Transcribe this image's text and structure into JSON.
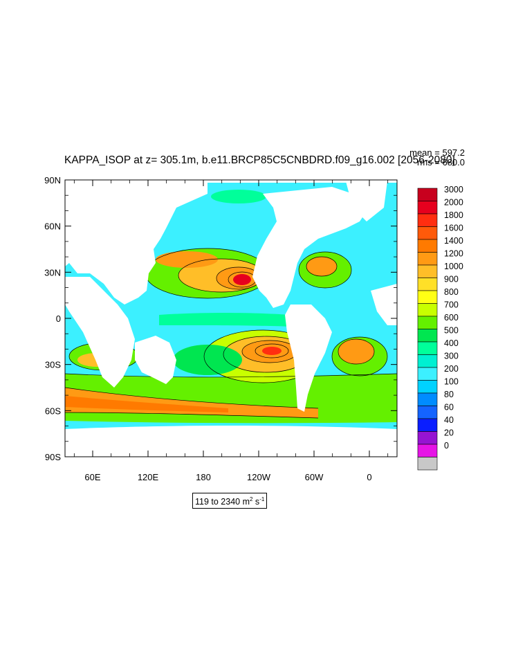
{
  "map": {
    "title": "KAPPA_ISOP at z= 305.1m, b.e11.BRCP85C5CNBDRD.f09_g16.002 [2056-2080]",
    "stats": {
      "mean": "mean = 597.2",
      "rms": "rms = 680.0"
    },
    "variable": "KAPPA_ISOP",
    "depth": "z= 305.1m",
    "case": "b.e11.BRCP85C5CNBDRD.f09_g16.002",
    "period": "[2056-2080]",
    "range_text": {
      "prefix": "119 to 2340 m",
      "sup1": "2",
      "mid": " s",
      "sup2": "-1"
    },
    "projection": "cylindrical equidistant",
    "longitude_range": [
      30,
      390
    ],
    "latitude_range": [
      -90,
      90
    ],
    "lat_ticks": [
      {
        "value": 90,
        "label": "90N"
      },
      {
        "value": 60,
        "label": "60N"
      },
      {
        "value": 30,
        "label": "30N"
      },
      {
        "value": 0,
        "label": "0"
      },
      {
        "value": -30,
        "label": "30S"
      },
      {
        "value": -60,
        "label": "60S"
      },
      {
        "value": -90,
        "label": "90S"
      }
    ],
    "lon_ticks": [
      {
        "value": 60,
        "label": "60E"
      },
      {
        "value": 120,
        "label": "120E"
      },
      {
        "value": 180,
        "label": "180"
      },
      {
        "value": 240,
        "label": "120W"
      },
      {
        "value": 300,
        "label": "60W"
      },
      {
        "value": 360,
        "label": "0"
      }
    ],
    "colorbar": {
      "levels": [
        "3000",
        "2000",
        "1800",
        "1600",
        "1400",
        "1200",
        "1000",
        "900",
        "800",
        "700",
        "600",
        "500",
        "400",
        "300",
        "200",
        "100",
        "80",
        "60",
        "40",
        "20",
        "0"
      ],
      "colors": [
        "#c8001e",
        "#e6001e",
        "#ff2e10",
        "#ff5a0a",
        "#ff7a00",
        "#ff9a14",
        "#ffbe28",
        "#ffe028",
        "#ffff14",
        "#c8ff00",
        "#64f000",
        "#00e650",
        "#00ff9a",
        "#00f0d2",
        "#3cf0ff",
        "#00d2ff",
        "#008cff",
        "#1464ff",
        "#0a1eff",
        "#9614d2",
        "#e614e6",
        "#c8c8c8"
      ]
    }
  }
}
